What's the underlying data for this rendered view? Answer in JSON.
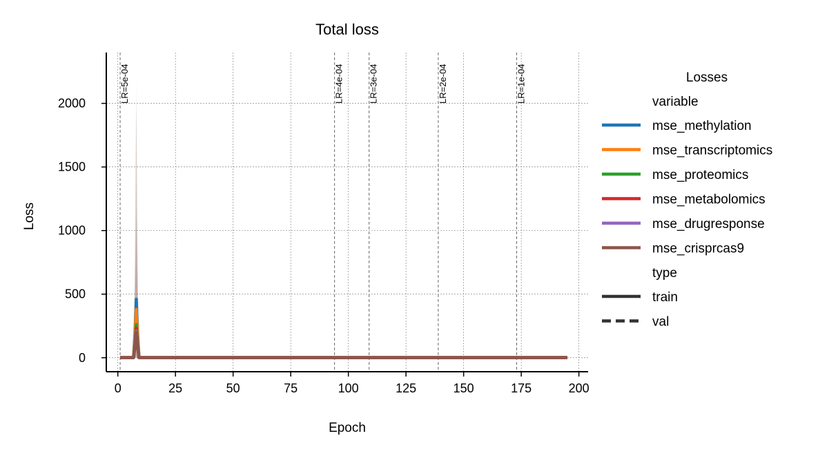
{
  "chart_data": {
    "type": "line",
    "title": "Total loss",
    "xlabel": "Epoch",
    "ylabel": "Loss",
    "xlim": [
      -5,
      204
    ],
    "ylim": [
      -110,
      2400
    ],
    "xticks": [
      0,
      25,
      50,
      75,
      100,
      125,
      150,
      175,
      200
    ],
    "yticks": [
      0,
      500,
      1000,
      1500,
      2000
    ],
    "grid": true,
    "lr_markers": [
      {
        "epoch": 1,
        "label": "LR=5e-04"
      },
      {
        "epoch": 94,
        "label": "LR=4e-04"
      },
      {
        "epoch": 109,
        "label": "LR=3e-04"
      },
      {
        "epoch": 139,
        "label": "LR=2e-04"
      },
      {
        "epoch": 173,
        "label": "LR=1e-04"
      }
    ],
    "x_range": [
      1,
      195
    ],
    "spike_epoch": 8,
    "series": [
      {
        "name": "mse_methylation",
        "color": "#1f77b4",
        "baseline": 2,
        "spike": 460,
        "band_max": 2200
      },
      {
        "name": "mse_transcriptomics",
        "color": "#ff7f0e",
        "baseline": 2,
        "spike": 380,
        "band_max": 2000
      },
      {
        "name": "mse_proteomics",
        "color": "#2ca02c",
        "baseline": 1,
        "spike": 260,
        "band_max": 1200
      },
      {
        "name": "mse_metabolomics",
        "color": "#d62728",
        "baseline": 1,
        "spike": 230,
        "band_max": 1100
      },
      {
        "name": "mse_drugresponse",
        "color": "#9467bd",
        "baseline": 1,
        "spike": 210,
        "band_max": 1000
      },
      {
        "name": "mse_crisprcas9",
        "color": "#8c564b",
        "baseline": 1,
        "spike": 200,
        "band_max": 2000
      }
    ]
  },
  "legend": {
    "title": "Losses",
    "variable_heading": "variable",
    "type_heading": "type",
    "types": [
      {
        "label": "train",
        "style": "solid"
      },
      {
        "label": "val",
        "style": "dashed"
      }
    ]
  }
}
